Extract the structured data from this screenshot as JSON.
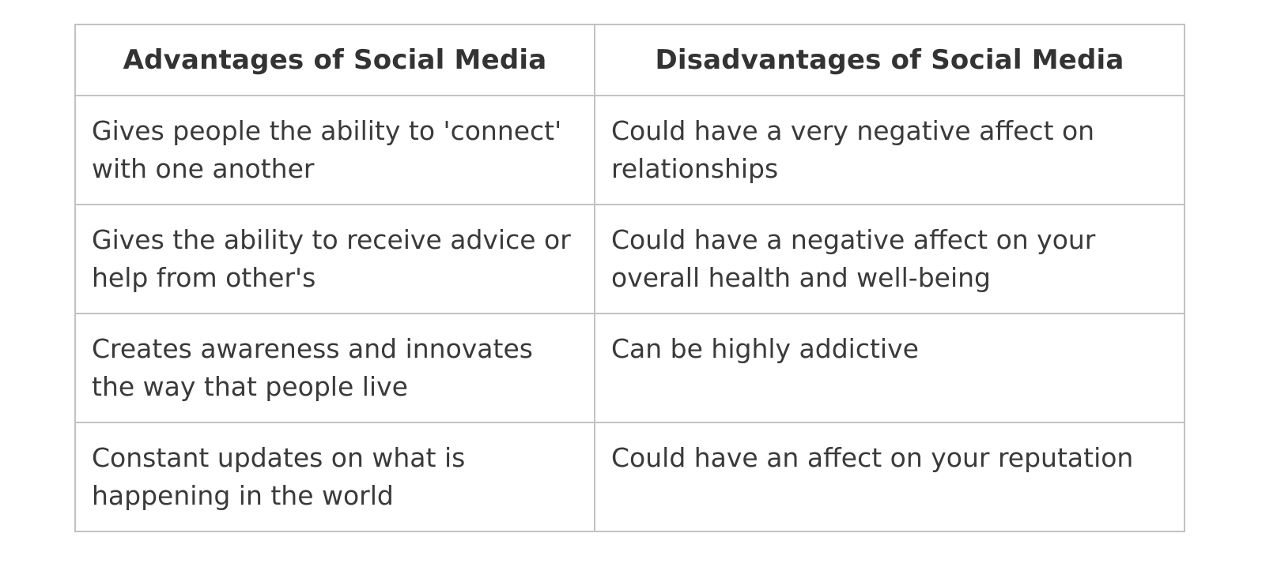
{
  "table": {
    "headers": [
      "Advantages of Social Media",
      "Disadvantages of Social Media"
    ],
    "rows": [
      [
        "Gives people the ability to 'connect' with one another",
        "Could have a very negative affect on relationships"
      ],
      [
        "Gives the ability to receive advice or help from other's",
        "Could have a negative affect on your overall health and well-being"
      ],
      [
        "Creates awareness and innovates the way that people live",
        "Can be highly addictive"
      ],
      [
        "Constant updates on what is happening in the world",
        "Could have an affect on your reputation"
      ]
    ]
  }
}
